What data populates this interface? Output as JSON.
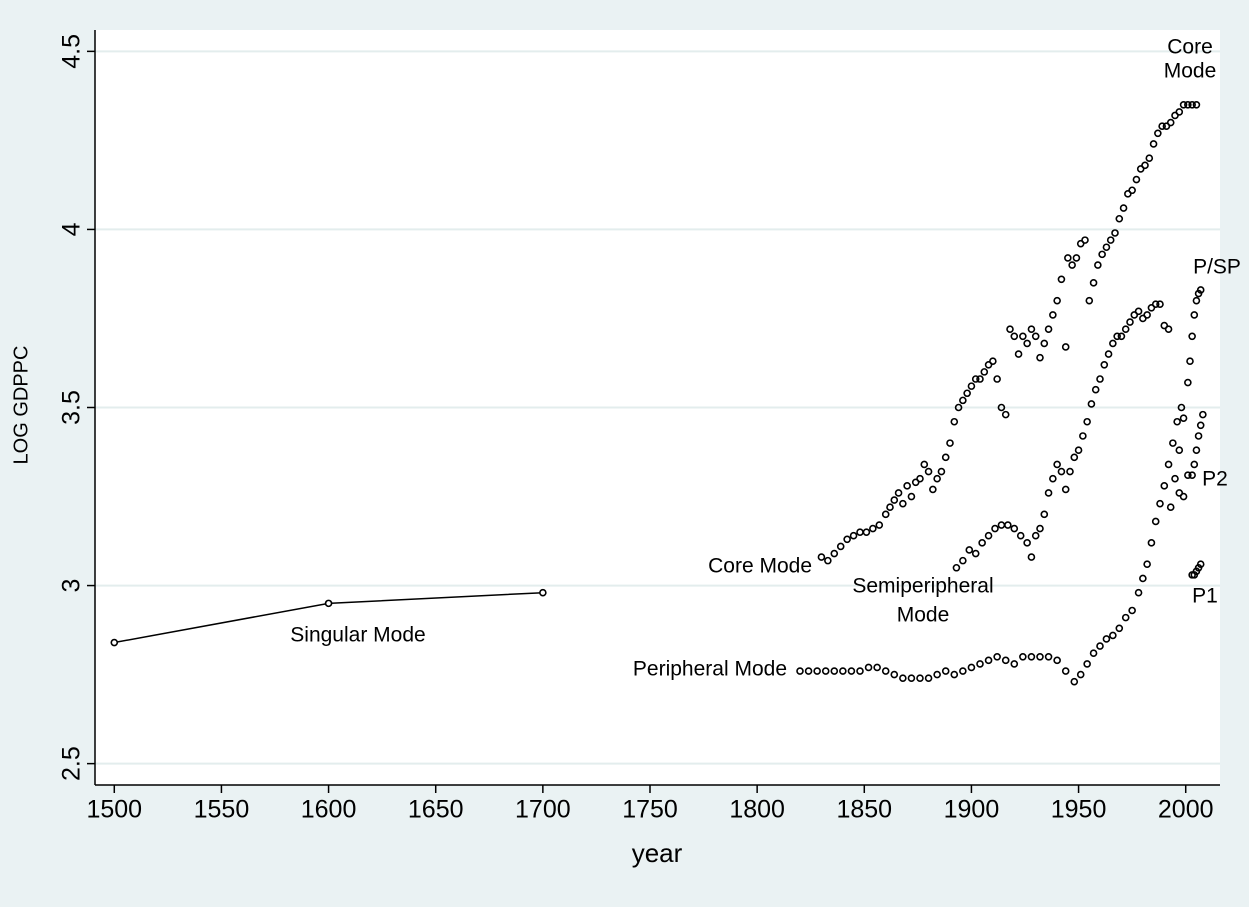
{
  "chart_data": {
    "type": "scatter",
    "xlabel": "year",
    "ylabel": "LOG GDPPC",
    "xlim": [
      1491,
      2016
    ],
    "ylim": [
      2.44,
      4.56
    ],
    "xticks": [
      1500,
      1550,
      1600,
      1650,
      1700,
      1750,
      1800,
      1850,
      1900,
      1950,
      2000
    ],
    "yticks": [
      2.5,
      3,
      3.5,
      4,
      4.5
    ],
    "grid": true,
    "color": "#000000",
    "series": [
      {
        "connected": true,
        "x": [
          1500,
          1600,
          1700
        ],
        "values": [
          2.84,
          2.95,
          2.98
        ]
      },
      {
        "connected": false,
        "x": [
          1830,
          1833,
          1836,
          1839,
          1842,
          1845,
          1848,
          1851,
          1854,
          1857,
          1860,
          1862,
          1864,
          1866,
          1868,
          1870,
          1872,
          1874,
          1876,
          1878,
          1880,
          1882,
          1884,
          1886,
          1888,
          1890,
          1892,
          1894,
          1896,
          1898,
          1900,
          1902,
          1904,
          1906,
          1908,
          1910,
          1912,
          1914,
          1916,
          1918,
          1920,
          1922,
          1924,
          1926,
          1928,
          1930,
          1932,
          1934,
          1936,
          1938,
          1940,
          1942,
          1944,
          1945,
          1947,
          1949,
          1951,
          1953,
          1955,
          1957,
          1959,
          1961,
          1963,
          1965,
          1967,
          1969,
          1971,
          1973,
          1975,
          1977,
          1979,
          1981,
          1983,
          1985,
          1987,
          1989,
          1991,
          1993,
          1995,
          1997,
          1999,
          2001,
          2003,
          2005
        ],
        "values": [
          3.08,
          3.07,
          3.09,
          3.11,
          3.13,
          3.14,
          3.15,
          3.15,
          3.16,
          3.17,
          3.2,
          3.22,
          3.24,
          3.26,
          3.23,
          3.28,
          3.25,
          3.29,
          3.3,
          3.34,
          3.32,
          3.27,
          3.3,
          3.32,
          3.36,
          3.4,
          3.46,
          3.5,
          3.52,
          3.54,
          3.56,
          3.58,
          3.58,
          3.6,
          3.62,
          3.63,
          3.58,
          3.5,
          3.48,
          3.72,
          3.7,
          3.65,
          3.7,
          3.68,
          3.72,
          3.7,
          3.64,
          3.68,
          3.72,
          3.76,
          3.8,
          3.86,
          3.67,
          3.92,
          3.9,
          3.92,
          3.96,
          3.97,
          3.8,
          3.85,
          3.9,
          3.93,
          3.95,
          3.97,
          3.99,
          4.03,
          4.06,
          4.1,
          4.11,
          4.14,
          4.17,
          4.18,
          4.2,
          4.24,
          4.27,
          4.29,
          4.29,
          4.3,
          4.32,
          4.33,
          4.35,
          4.35,
          4.35,
          4.35
        ]
      },
      {
        "connected": false,
        "x": [
          1893,
          1896,
          1899,
          1902,
          1905,
          1908,
          1911,
          1914,
          1917,
          1920,
          1923,
          1926,
          1928,
          1930,
          1932,
          1934,
          1936,
          1938,
          1940,
          1942,
          1944,
          1946,
          1948,
          1950,
          1952,
          1954,
          1956,
          1958,
          1960,
          1962,
          1964,
          1966,
          1968,
          1970,
          1972,
          1974,
          1976,
          1978,
          1980,
          1982,
          1984,
          1986,
          1988,
          1990,
          1992
        ],
        "values": [
          3.05,
          3.07,
          3.1,
          3.09,
          3.12,
          3.14,
          3.16,
          3.17,
          3.17,
          3.16,
          3.14,
          3.12,
          3.08,
          3.14,
          3.16,
          3.2,
          3.26,
          3.3,
          3.34,
          3.32,
          3.27,
          3.32,
          3.36,
          3.38,
          3.42,
          3.46,
          3.51,
          3.55,
          3.58,
          3.62,
          3.65,
          3.68,
          3.7,
          3.7,
          3.72,
          3.74,
          3.76,
          3.77,
          3.75,
          3.76,
          3.78,
          3.79,
          3.79,
          3.73,
          3.72
        ]
      },
      {
        "connected": false,
        "x": [
          1820,
          1824,
          1828,
          1832,
          1836,
          1840,
          1844,
          1848,
          1852,
          1856,
          1860,
          1864,
          1868,
          1872,
          1876,
          1880,
          1884,
          1888,
          1892,
          1896,
          1900,
          1904,
          1908,
          1912,
          1916,
          1920,
          1924,
          1928,
          1932,
          1936,
          1940,
          1944,
          1948,
          1951,
          1954,
          1957,
          1960,
          1963,
          1966,
          1969,
          1972,
          1975,
          1978,
          1980,
          1982,
          1984,
          1986,
          1988,
          1990,
          1992,
          1994,
          1996,
          1998
        ],
        "values": [
          2.76,
          2.76,
          2.76,
          2.76,
          2.76,
          2.76,
          2.76,
          2.76,
          2.77,
          2.77,
          2.76,
          2.75,
          2.74,
          2.74,
          2.74,
          2.74,
          2.75,
          2.76,
          2.75,
          2.76,
          2.77,
          2.78,
          2.79,
          2.8,
          2.79,
          2.78,
          2.8,
          2.8,
          2.8,
          2.8,
          2.79,
          2.76,
          2.73,
          2.75,
          2.78,
          2.81,
          2.83,
          2.85,
          2.86,
          2.88,
          2.91,
          2.93,
          2.98,
          3.02,
          3.06,
          3.12,
          3.18,
          3.23,
          3.28,
          3.34,
          3.4,
          3.46,
          3.5
        ]
      },
      {
        "connected": false,
        "x": [
          1993,
          1995,
          1997,
          1999,
          2001,
          2002,
          2003,
          2004,
          2005,
          2006,
          2007
        ],
        "values": [
          3.22,
          3.3,
          3.38,
          3.47,
          3.57,
          3.63,
          3.7,
          3.76,
          3.8,
          3.82,
          3.83
        ]
      },
      {
        "connected": false,
        "x": [
          1997,
          1999,
          2001,
          2003,
          2004,
          2005,
          2006,
          2007,
          2008
        ],
        "values": [
          3.26,
          3.25,
          3.31,
          3.31,
          3.34,
          3.38,
          3.42,
          3.45,
          3.48
        ]
      },
      {
        "connected": false,
        "x": [
          2003,
          2004,
          2005,
          2006,
          2007
        ],
        "values": [
          3.03,
          3.03,
          3.04,
          3.05,
          3.06
        ]
      }
    ],
    "annotations": [
      [
        "Core",
        "Mode"
      ],
      [
        "P/SP"
      ],
      [
        "P2"
      ],
      [
        "P1"
      ],
      [
        "Core Mode"
      ],
      [
        "Semiperipheral",
        "Mode"
      ],
      [
        "Singular Mode"
      ],
      [
        "Peripheral Mode"
      ]
    ]
  }
}
